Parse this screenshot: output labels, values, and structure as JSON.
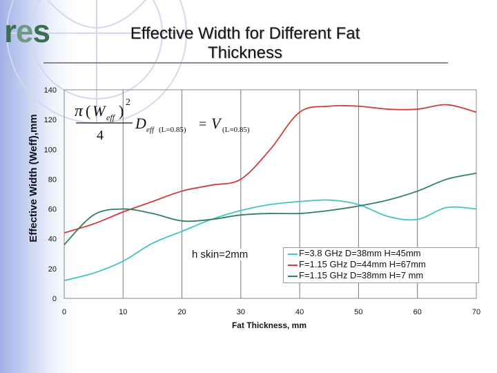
{
  "logo": {
    "text_main": "r",
    "text_e": "e",
    "text_end": "s"
  },
  "title": "Effective Width for Different Fat Thickness",
  "chart_data": {
    "type": "line",
    "title": "Effective Width for Different Fat Thickness",
    "xlabel": "Fat Thickness, mm",
    "ylabel": "Effective Width (Weff),mm",
    "xlim": [
      0,
      70
    ],
    "ylim": [
      0,
      140
    ],
    "xticks": [
      0,
      10,
      20,
      30,
      40,
      50,
      60,
      70
    ],
    "yticks": [
      0,
      20,
      40,
      60,
      80,
      100,
      120,
      140
    ],
    "annotation": "h skin=2mm",
    "formula": {
      "pi": "π",
      "w": "W",
      "eff": "eff",
      "sq": "2",
      "den": "4",
      "d": "D",
      "l": "(L=0.85)",
      "eq": "=",
      "v": "V"
    },
    "series": [
      {
        "name": "F=3.8 GHz D=38mm H=45mm",
        "color": "#3fc4c4",
        "x": [
          0,
          5,
          10,
          15,
          20,
          25,
          30,
          35,
          40,
          45,
          50,
          55,
          60,
          65,
          70
        ],
        "y": [
          12,
          17,
          25,
          37,
          45,
          53,
          59,
          63,
          65,
          66,
          63,
          55,
          53,
          61,
          60
        ]
      },
      {
        "name": "F=1.15 GHz D=44mm H=67mm",
        "color": "#d43a3a",
        "x": [
          0,
          5,
          10,
          15,
          20,
          25,
          30,
          35,
          40,
          45,
          50,
          55,
          60,
          65,
          70
        ],
        "y": [
          44,
          50,
          58,
          65,
          72,
          76,
          80,
          100,
          125,
          129,
          129,
          127,
          127,
          130,
          125
        ]
      },
      {
        "name": "F=1.15 GHz D=38mm H=7 mm",
        "color": "#2f8060",
        "x": [
          0,
          5,
          10,
          15,
          20,
          25,
          30,
          35,
          40,
          45,
          50,
          55,
          60,
          65,
          70
        ],
        "y": [
          36,
          56,
          60,
          57,
          52,
          53,
          56,
          57,
          57,
          59,
          62,
          66,
          72,
          80,
          84
        ]
      }
    ]
  }
}
